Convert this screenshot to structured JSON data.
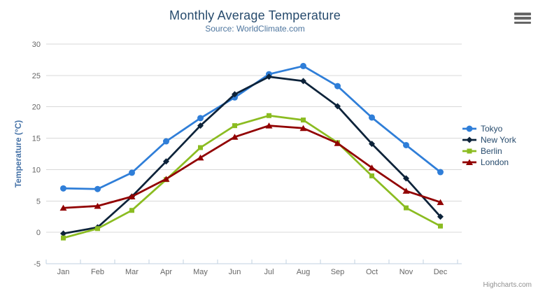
{
  "title": "Monthly Average Temperature",
  "subtitle": "Source: WorldClimate.com",
  "credits": "Highcharts.com",
  "menu_icon": "hamburger-icon",
  "styles": {
    "title_color": "#274b6d",
    "subtitle_color": "#4d759e",
    "axis_label_color": "#666666",
    "axis_title_color": "#4572a7",
    "grid_color": "#d8d8d8",
    "axis_line_color": "#c0d0e0",
    "legend_text_color": "#274b6d",
    "credits_color": "#909090",
    "menu_icon_color": "#666666",
    "background": "#ffffff"
  },
  "chart_data": {
    "type": "line",
    "title": "Monthly Average Temperature",
    "subtitle": "Source: WorldClimate.com",
    "xlabel": "",
    "ylabel": "Temperature (°C)",
    "categories": [
      "Jan",
      "Feb",
      "Mar",
      "Apr",
      "May",
      "Jun",
      "Jul",
      "Aug",
      "Sep",
      "Oct",
      "Nov",
      "Dec"
    ],
    "ylim": [
      -5,
      30
    ],
    "ytick_step": 5,
    "grid": true,
    "legend_position": "right",
    "series": [
      {
        "name": "Tokyo",
        "color": "#2f7ed8",
        "marker": "circle",
        "values": [
          7.0,
          6.9,
          9.5,
          14.5,
          18.2,
          21.5,
          25.2,
          26.5,
          23.3,
          18.3,
          13.9,
          9.6
        ]
      },
      {
        "name": "New York",
        "color": "#0d233a",
        "marker": "diamond",
        "values": [
          -0.2,
          0.8,
          5.7,
          11.3,
          17.0,
          22.0,
          24.8,
          24.1,
          20.1,
          14.1,
          8.6,
          2.5
        ]
      },
      {
        "name": "Berlin",
        "color": "#8bbc21",
        "marker": "square",
        "values": [
          -0.9,
          0.6,
          3.5,
          8.4,
          13.5,
          17.0,
          18.6,
          17.9,
          14.3,
          9.0,
          3.9,
          1.0
        ]
      },
      {
        "name": "London",
        "color": "#910000",
        "marker": "triangle",
        "values": [
          3.9,
          4.2,
          5.7,
          8.5,
          11.9,
          15.2,
          17.0,
          16.6,
          14.2,
          10.3,
          6.6,
          4.8
        ]
      }
    ]
  }
}
